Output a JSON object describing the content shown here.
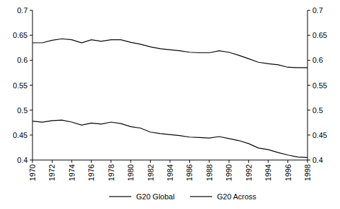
{
  "chart_data": {
    "type": "line",
    "x": [
      1970,
      1971,
      1972,
      1973,
      1974,
      1975,
      1976,
      1977,
      1978,
      1979,
      1980,
      1981,
      1982,
      1983,
      1984,
      1985,
      1986,
      1987,
      1988,
      1989,
      1990,
      1991,
      1992,
      1993,
      1994,
      1995,
      1996,
      1997,
      1998
    ],
    "series": [
      {
        "name": "G20 Global",
        "color": "#000000",
        "values": [
          0.635,
          0.635,
          0.64,
          0.643,
          0.641,
          0.635,
          0.641,
          0.638,
          0.641,
          0.641,
          0.636,
          0.632,
          0.627,
          0.623,
          0.621,
          0.619,
          0.616,
          0.615,
          0.615,
          0.619,
          0.616,
          0.61,
          0.603,
          0.596,
          0.593,
          0.591,
          0.586,
          0.585,
          0.585
        ]
      },
      {
        "name": "G20 Across",
        "color": "#000000",
        "values": [
          0.478,
          0.476,
          0.479,
          0.48,
          0.476,
          0.47,
          0.474,
          0.472,
          0.476,
          0.473,
          0.467,
          0.464,
          0.456,
          0.453,
          0.451,
          0.449,
          0.446,
          0.445,
          0.444,
          0.447,
          0.443,
          0.439,
          0.433,
          0.424,
          0.421,
          0.415,
          0.41,
          0.406,
          0.405
        ]
      }
    ],
    "xlim": [
      1970,
      1998
    ],
    "xticks": [
      1970,
      1972,
      1974,
      1976,
      1978,
      1980,
      1982,
      1984,
      1986,
      1988,
      1990,
      1992,
      1994,
      1996,
      1998
    ],
    "ylim": [
      0.4,
      0.7
    ],
    "yticks": [
      0.4,
      0.45,
      0.5,
      0.55,
      0.6,
      0.65,
      0.7
    ],
    "y2lim": [
      0.4,
      0.7
    ],
    "y2ticks": [
      0.4,
      0.45,
      0.5,
      0.55,
      0.6,
      0.65,
      0.7
    ],
    "grid": false,
    "legend": "bottom"
  }
}
